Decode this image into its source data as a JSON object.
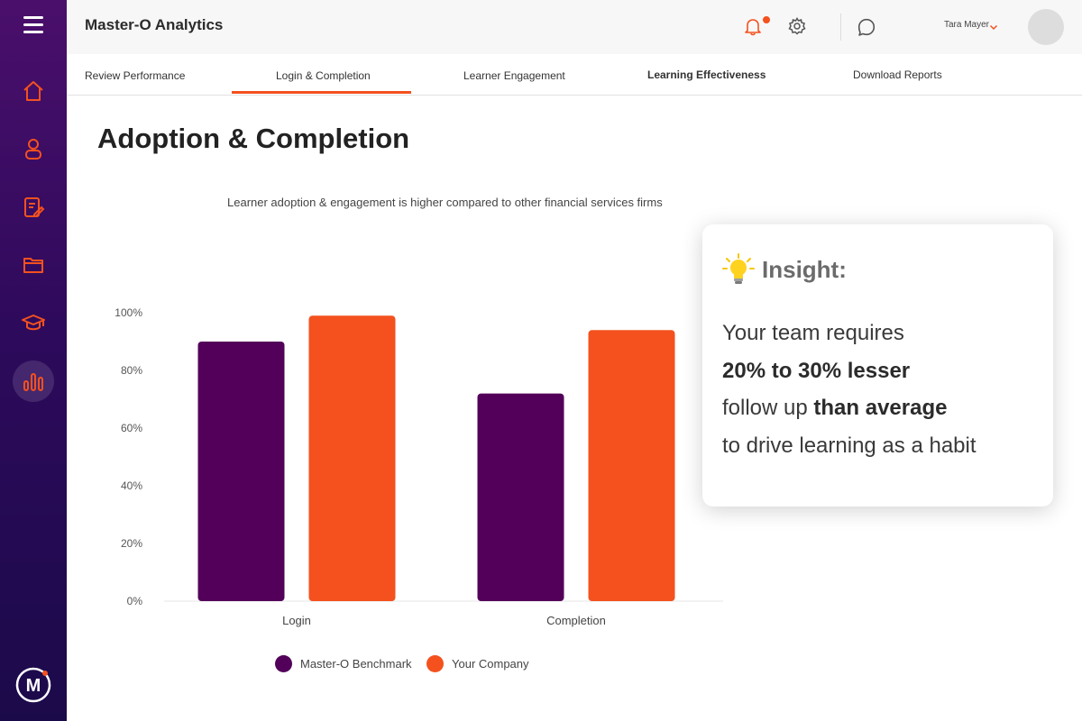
{
  "app": {
    "title": "Master-O Analytics"
  },
  "user": {
    "name": "Tara Mayer"
  },
  "tabs": [
    {
      "label": "Review Performance"
    },
    {
      "label": "Login & Completion"
    },
    {
      "label": "Learner Engagement"
    },
    {
      "label": "Learning Effectiveness"
    },
    {
      "label": "Download Reports"
    }
  ],
  "page": {
    "title": "Adoption & Completion"
  },
  "insight": {
    "title": "Insight:",
    "line1": "Your team requires",
    "line2_bold": "20% to 30% lesser",
    "line3_plain": "follow up ",
    "line3_bold": "than average",
    "line4": "to drive learning as a habit"
  },
  "colors": {
    "benchmark": "#520059",
    "company": "#f4511e",
    "accent": "#f4511e"
  },
  "chart_data": {
    "type": "bar",
    "title": "Learner adoption & engagement is higher compared to other financial services firms",
    "categories": [
      "Login",
      "Completion"
    ],
    "series": [
      {
        "name": "Master-O Benchmark",
        "values": [
          90,
          72
        ]
      },
      {
        "name": "Your Company",
        "values": [
          99,
          94
        ]
      }
    ],
    "ylim": [
      0,
      100
    ],
    "yticks": [
      "0%",
      "20%",
      "40%",
      "60%",
      "80%",
      "100%"
    ],
    "legend": "bottom",
    "grid": false
  }
}
